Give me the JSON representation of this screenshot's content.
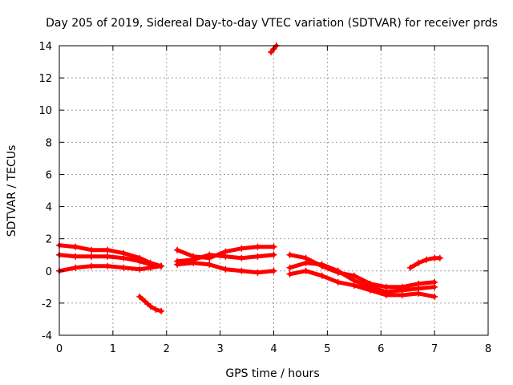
{
  "chart_data": {
    "type": "scatter",
    "title": "Day 205 of 2019, Sidereal Day-to-day VTEC variation (SDTVAR) for receiver prds",
    "xlabel": "GPS time / hours",
    "ylabel": "SDTVAR / TECUs",
    "xlim": [
      0,
      8
    ],
    "ylim": [
      -4,
      14
    ],
    "xticks": [
      "0",
      "1",
      "2",
      "3",
      "4",
      "5",
      "6",
      "7",
      "8"
    ],
    "yticks": [
      "-4",
      "-2",
      "0",
      "2",
      "4",
      "6",
      "8",
      "10",
      "12",
      "14"
    ],
    "grid": true,
    "marker_color": "#ff0000",
    "series": [
      {
        "x": [
          0.0,
          0.3,
          0.6,
          0.9,
          1.2,
          1.5,
          1.7,
          1.9
        ],
        "y": [
          1.6,
          1.5,
          1.3,
          1.3,
          1.1,
          0.8,
          0.5,
          0.3
        ]
      },
      {
        "x": [
          0.0,
          0.3,
          0.6,
          0.9,
          1.2,
          1.5,
          1.7,
          1.9
        ],
        "y": [
          1.0,
          0.9,
          0.9,
          0.9,
          0.8,
          0.6,
          0.4,
          0.3
        ]
      },
      {
        "x": [
          0.0,
          0.3,
          0.6,
          0.9,
          1.2,
          1.5,
          1.7,
          1.9
        ],
        "y": [
          0.0,
          0.2,
          0.3,
          0.3,
          0.2,
          0.1,
          0.2,
          0.3
        ]
      },
      {
        "x": [
          1.5,
          1.6,
          1.7,
          1.8,
          1.9
        ],
        "y": [
          -1.6,
          -1.9,
          -2.2,
          -2.4,
          -2.5
        ]
      },
      {
        "x": [
          2.2,
          2.5,
          2.8,
          3.1,
          3.4,
          3.7,
          4.0
        ],
        "y": [
          1.3,
          0.9,
          0.8,
          1.2,
          1.4,
          1.5,
          1.5
        ]
      },
      {
        "x": [
          2.2,
          2.5,
          2.8,
          3.1,
          3.4,
          3.7,
          4.0
        ],
        "y": [
          0.6,
          0.7,
          1.0,
          0.9,
          0.8,
          0.9,
          1.0
        ]
      },
      {
        "x": [
          2.2,
          2.5,
          2.8,
          3.1,
          3.4,
          3.7,
          4.0
        ],
        "y": [
          0.4,
          0.5,
          0.4,
          0.1,
          0.0,
          -0.1,
          0.0
        ]
      },
      {
        "x": [
          3.95,
          4.0,
          4.05
        ],
        "y": [
          13.6,
          13.8,
          14.0
        ]
      },
      {
        "x": [
          4.3,
          4.6,
          4.9,
          5.2,
          5.5,
          5.8,
          6.1,
          6.4,
          6.7,
          7.0
        ],
        "y": [
          1.0,
          0.8,
          0.3,
          -0.1,
          -0.3,
          -0.8,
          -1.0,
          -1.0,
          -0.8,
          -0.7
        ]
      },
      {
        "x": [
          4.3,
          4.6,
          4.9,
          5.2,
          5.5,
          5.8,
          6.1,
          6.4,
          6.7,
          7.0
        ],
        "y": [
          0.2,
          0.5,
          0.4,
          0.0,
          -0.6,
          -1.0,
          -1.3,
          -1.2,
          -1.1,
          -1.0
        ]
      },
      {
        "x": [
          4.3,
          4.6,
          4.9,
          5.2,
          5.5,
          5.8,
          6.1,
          6.4,
          6.7,
          7.0
        ],
        "y": [
          -0.2,
          0.0,
          -0.3,
          -0.7,
          -0.9,
          -1.2,
          -1.5,
          -1.5,
          -1.4,
          -1.6
        ]
      },
      {
        "x": [
          6.55,
          6.7,
          6.85,
          7.0,
          7.1
        ],
        "y": [
          0.2,
          0.5,
          0.7,
          0.8,
          0.8
        ]
      }
    ]
  }
}
